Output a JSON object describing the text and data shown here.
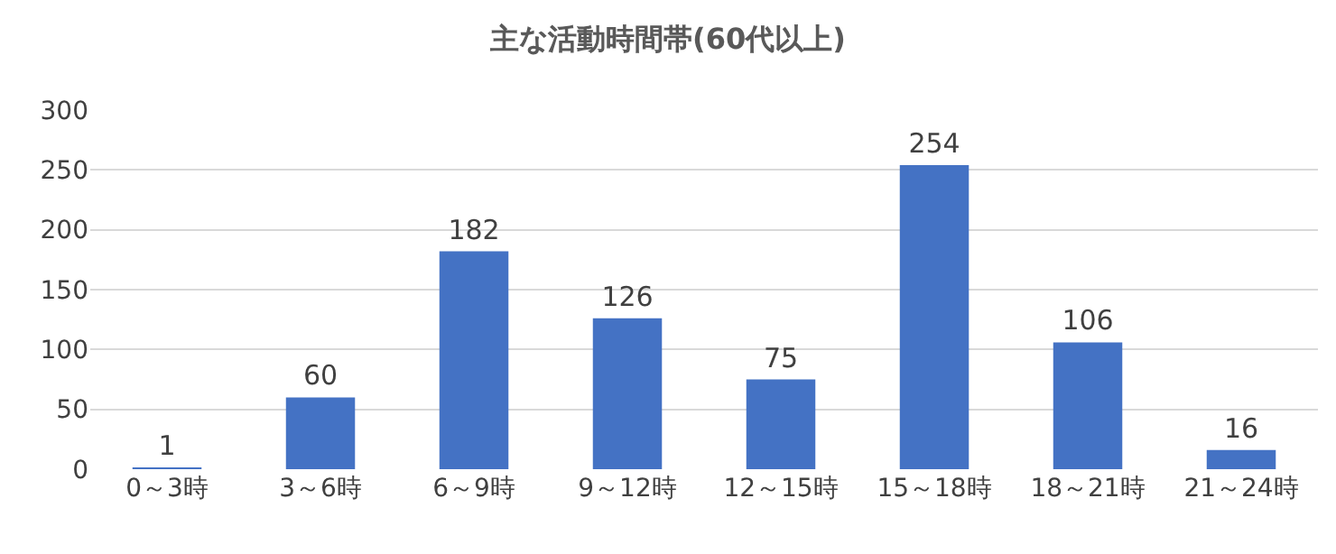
{
  "chart_data": {
    "type": "bar",
    "title": "主な活動時間帯(60代以上)",
    "categories": [
      "0～3時",
      "3～6時",
      "6～9時",
      "9～12時",
      "12～15時",
      "15～18時",
      "18～21時",
      "21～24時"
    ],
    "values": [
      1,
      60,
      182,
      126,
      75,
      254,
      106,
      16
    ],
    "color": "#4472c4",
    "ylim": [
      0,
      300
    ],
    "yticks": [
      0,
      50,
      100,
      150,
      200,
      250,
      300
    ],
    "grid": "y",
    "data_labels": true
  }
}
